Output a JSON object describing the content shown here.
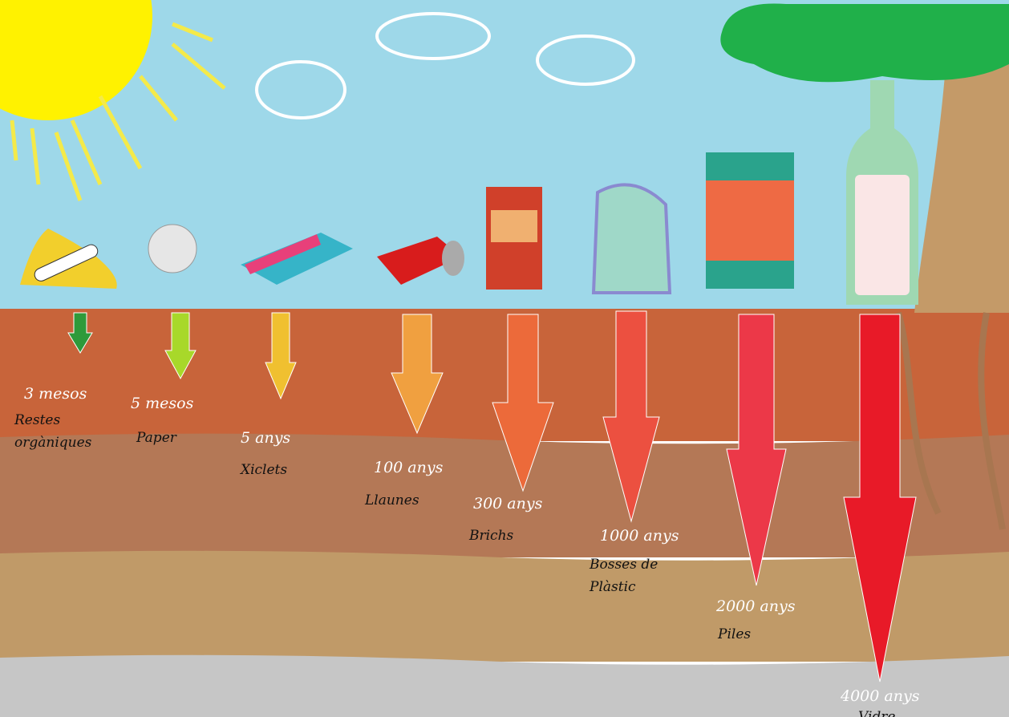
{
  "items": [
    {
      "time": "3 mesos",
      "name": "Restes orgàniques"
    },
    {
      "time": "5 mesos",
      "name": "Paper"
    },
    {
      "time": "5 anys",
      "name": "Xiclets"
    },
    {
      "time": "100 anys",
      "name": "Llaunes"
    },
    {
      "time": "300 anys",
      "name": "Brichs"
    },
    {
      "time": "1000 anys",
      "name": "Bosses de Plàstic"
    },
    {
      "time": "2000 anys",
      "name": "Piles"
    },
    {
      "time": "4000 anys",
      "name": "Vidre"
    }
  ]
}
